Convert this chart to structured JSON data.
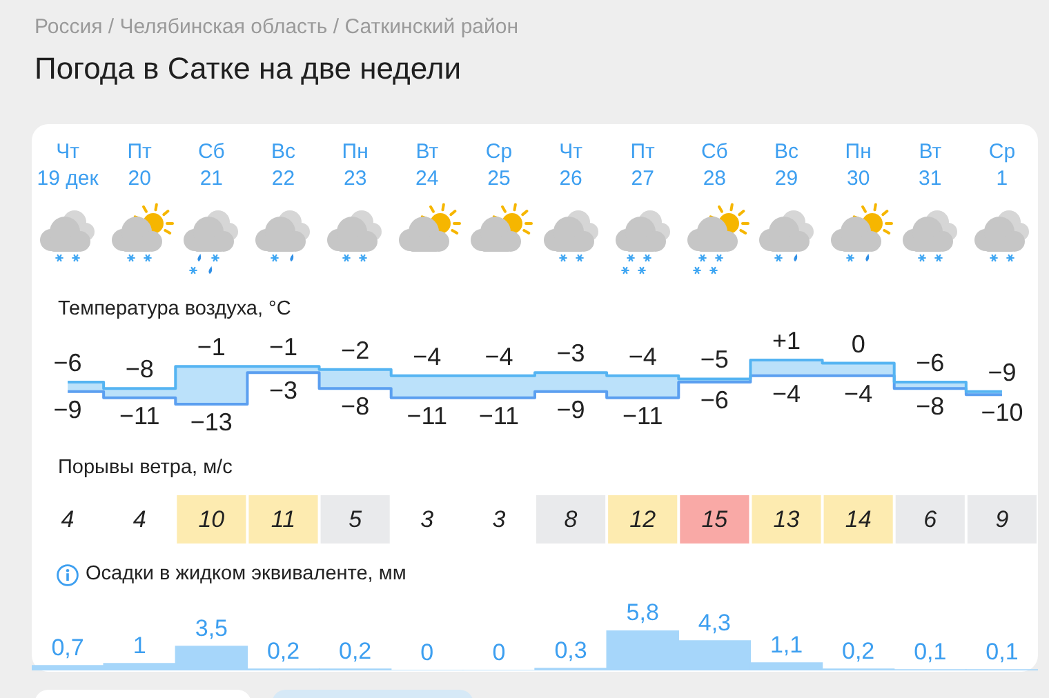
{
  "chart_data": [
    {
      "type": "step",
      "title": "Погода в Сатке на две недели",
      "ylabel": "Температура воздуха, °C",
      "categories": [
        "Чт\n19 дек",
        "Пт\n20",
        "Сб\n21",
        "Вс\n22",
        "Пн\n23",
        "Вт\n24",
        "Ср\n25",
        "Чт\n26",
        "Пт\n27",
        "Сб\n28",
        "Вс\n29",
        "Пн\n30",
        "Вт\n31",
        "Ср\n1"
      ],
      "series": [
        {
          "color": "#55b4f2",
          "values": [
            -6,
            -8,
            -1,
            -1,
            -2,
            -4,
            -4,
            -3,
            -4,
            -5,
            1,
            0,
            -6,
            -9
          ],
          "lower": [
            -9,
            -11,
            -13,
            -3,
            -8,
            -11,
            -11,
            -9,
            -11,
            -6,
            -4,
            -4,
            -8,
            -10
          ],
          "upper": [
            -6,
            -8,
            -1,
            -1,
            -2,
            -4,
            -4,
            -3,
            -4,
            -5,
            1,
            0,
            -6,
            -9
          ],
          "value_labels": [
            "−6",
            "−8",
            "−1",
            "−1",
            "−2",
            "−4",
            "−4",
            "−3",
            "−4",
            "−5",
            "+1",
            "0",
            "−6",
            "−9"
          ]
        },
        {
          "color": "#5b9ff0",
          "values": [
            -9,
            -11,
            -13,
            -3,
            -8,
            -11,
            -11,
            -9,
            -11,
            -6,
            -4,
            -4,
            -8,
            -10
          ],
          "value_labels": [
            "−9",
            "−11",
            "−13",
            "−3",
            "−8",
            "−11",
            "−11",
            "−9",
            "−11",
            "−6",
            "−4",
            "−4",
            "−8",
            "−10"
          ]
        }
      ],
      "tick_labels": "x",
      "annotations": [
        "Россия / Челябинская область / Саткинский район"
      ]
    },
    {
      "type": "heatmap",
      "title": "Порывы ветра, м/с",
      "categories": [
        null,
        null,
        null,
        null,
        null,
        null,
        null,
        null,
        null,
        null,
        null,
        null,
        null,
        null
      ],
      "y_categories": [
        null
      ],
      "cells": [
        [
          4,
          4,
          10,
          11,
          5,
          3,
          3,
          8,
          12,
          15,
          13,
          14,
          6,
          9
        ]
      ],
      "colors": [
        "#ffffff",
        "#ffffff",
        "#fdebb0",
        "#fdebb0",
        "#e9eaec",
        "#ffffff",
        "#ffffff",
        "#e9eaec",
        "#fdebb0",
        "#f9a9a6",
        "#fdebb0",
        "#fdebb0",
        "#e9eaec",
        "#e9eaec"
      ],
      "data_labels": true,
      "tick_labels": false
    },
    {
      "type": "bar",
      "title": "Осадки в жидком эквиваленте, мм",
      "categories": [
        null,
        null,
        null,
        null,
        null,
        null,
        null,
        null,
        null,
        null,
        null,
        null,
        null,
        null
      ],
      "values": [
        0.7,
        1,
        3.5,
        0.2,
        0.2,
        0,
        0,
        0.3,
        5.8,
        4.3,
        1.1,
        0.2,
        0.1,
        0.1
      ],
      "value_labels": [
        "0,7",
        "1",
        "3,5",
        "0,2",
        "0,2",
        "0",
        "0",
        "0,3",
        "5,8",
        "4,3",
        "1,1",
        "0,2",
        "0,1",
        "0,1"
      ],
      "color": "#a6d6fa",
      "tick_labels": false
    }
  ]
}
